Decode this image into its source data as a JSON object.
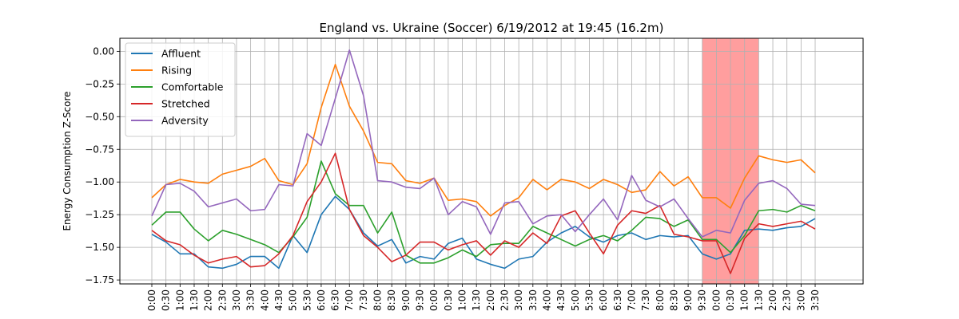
{
  "chart_data": {
    "type": "line",
    "title": "England vs. Ukraine (Soccer) 6/19/2012 at 19:45 (16.2m)",
    "xlabel": "",
    "ylabel": "Energy Consumption Z-Score",
    "ylim": [
      -1.78,
      0.1
    ],
    "yticks": [
      0.0,
      -0.25,
      -0.5,
      -0.75,
      -1.0,
      -1.25,
      -1.5,
      -1.75
    ],
    "ytick_labels": [
      "0.00",
      "−0.25",
      "−0.50",
      "−0.75",
      "−1.00",
      "−1.25",
      "−1.50",
      "−1.75"
    ],
    "grid": true,
    "legend_position": "top-left",
    "categories": [
      "0:00",
      "0:30",
      "1:00",
      "1:30",
      "2:00",
      "2:30",
      "3:00",
      "3:30",
      "4:00",
      "4:30",
      "5:00",
      "5:30",
      "6:00",
      "6:30",
      "7:00",
      "7:30",
      "8:00",
      "8:30",
      "9:00",
      "9:30",
      "0:00",
      "0:30",
      "1:00",
      "1:30",
      "2:00",
      "2:30",
      "3:00",
      "3:30",
      "4:00",
      "4:30",
      "5:00",
      "5:30",
      "6:00",
      "6:30",
      "7:00",
      "7:30",
      "8:00",
      "8:30",
      "9:00",
      "9:30",
      "0:00",
      "0:30",
      "1:00",
      "1:30",
      "2:00",
      "2:30",
      "3:00",
      "3:30"
    ],
    "highlight": {
      "from": "9:30",
      "to": "1:30",
      "color": "#ff9999"
    },
    "series": [
      {
        "name": "Affluent",
        "color": "#1f77b4",
        "values": [
          -1.4,
          -1.46,
          -1.55,
          -1.55,
          -1.65,
          -1.66,
          -1.63,
          -1.57,
          -1.57,
          -1.66,
          -1.41,
          -1.54,
          -1.25,
          -1.11,
          -1.21,
          -1.39,
          -1.49,
          -1.44,
          -1.62,
          -1.57,
          -1.59,
          -1.47,
          -1.43,
          -1.59,
          -1.63,
          -1.66,
          -1.59,
          -1.57,
          -1.46,
          -1.39,
          -1.34,
          -1.42,
          -1.46,
          -1.41,
          -1.39,
          -1.44,
          -1.41,
          -1.42,
          -1.41,
          -1.55,
          -1.59,
          -1.55,
          -1.37,
          -1.36,
          -1.37,
          -1.35,
          -1.34,
          -1.28
        ]
      },
      {
        "name": "Rising",
        "color": "#ff7f0e",
        "values": [
          -1.12,
          -1.02,
          -0.98,
          -1.0,
          -1.01,
          -0.94,
          -0.91,
          -0.88,
          -0.82,
          -0.99,
          -1.02,
          -0.86,
          -0.43,
          -0.1,
          -0.42,
          -0.61,
          -0.85,
          -0.86,
          -0.99,
          -1.01,
          -0.97,
          -1.14,
          -1.13,
          -1.15,
          -1.26,
          -1.18,
          -1.12,
          -0.98,
          -1.06,
          -0.98,
          -1.0,
          -1.05,
          -0.98,
          -1.02,
          -1.08,
          -1.06,
          -0.92,
          -1.03,
          -0.96,
          -1.12,
          -1.12,
          -1.2,
          -0.97,
          -0.8,
          -0.83,
          -0.85,
          -0.83,
          -0.93
        ]
      },
      {
        "name": "Comfortable",
        "color": "#2ca02c",
        "values": [
          -1.33,
          -1.23,
          -1.23,
          -1.36,
          -1.45,
          -1.37,
          -1.4,
          -1.44,
          -1.48,
          -1.54,
          -1.42,
          -1.27,
          -0.84,
          -1.09,
          -1.18,
          -1.18,
          -1.39,
          -1.23,
          -1.56,
          -1.62,
          -1.62,
          -1.58,
          -1.52,
          -1.57,
          -1.48,
          -1.47,
          -1.47,
          -1.34,
          -1.39,
          -1.44,
          -1.49,
          -1.44,
          -1.41,
          -1.45,
          -1.37,
          -1.27,
          -1.28,
          -1.34,
          -1.29,
          -1.44,
          -1.44,
          -1.54,
          -1.41,
          -1.22,
          -1.21,
          -1.23,
          -1.18,
          -1.22
        ]
      },
      {
        "name": "Stretched",
        "color": "#d62728",
        "values": [
          -1.37,
          -1.45,
          -1.48,
          -1.56,
          -1.62,
          -1.59,
          -1.57,
          -1.65,
          -1.64,
          -1.55,
          -1.41,
          -1.15,
          -1.0,
          -0.78,
          -1.21,
          -1.41,
          -1.5,
          -1.61,
          -1.56,
          -1.46,
          -1.46,
          -1.52,
          -1.48,
          -1.45,
          -1.56,
          -1.45,
          -1.5,
          -1.39,
          -1.47,
          -1.26,
          -1.22,
          -1.39,
          -1.55,
          -1.33,
          -1.22,
          -1.24,
          -1.18,
          -1.4,
          -1.42,
          -1.45,
          -1.45,
          -1.7,
          -1.43,
          -1.32,
          -1.34,
          -1.32,
          -1.3,
          -1.36
        ]
      },
      {
        "name": "Adversity",
        "color": "#9467bd",
        "values": [
          -1.26,
          -1.02,
          -1.01,
          -1.07,
          -1.19,
          -1.16,
          -1.13,
          -1.22,
          -1.21,
          -1.02,
          -1.03,
          -0.63,
          -0.72,
          -0.36,
          0.01,
          -0.34,
          -0.99,
          -1.0,
          -1.04,
          -1.05,
          -0.97,
          -1.25,
          -1.15,
          -1.19,
          -1.4,
          -1.16,
          -1.15,
          -1.32,
          -1.26,
          -1.25,
          -1.38,
          -1.25,
          -1.13,
          -1.29,
          -0.95,
          -1.14,
          -1.19,
          -1.13,
          -1.28,
          -1.42,
          -1.37,
          -1.39,
          -1.14,
          -1.01,
          -0.99,
          -1.05,
          -1.17,
          -1.18
        ]
      }
    ]
  }
}
